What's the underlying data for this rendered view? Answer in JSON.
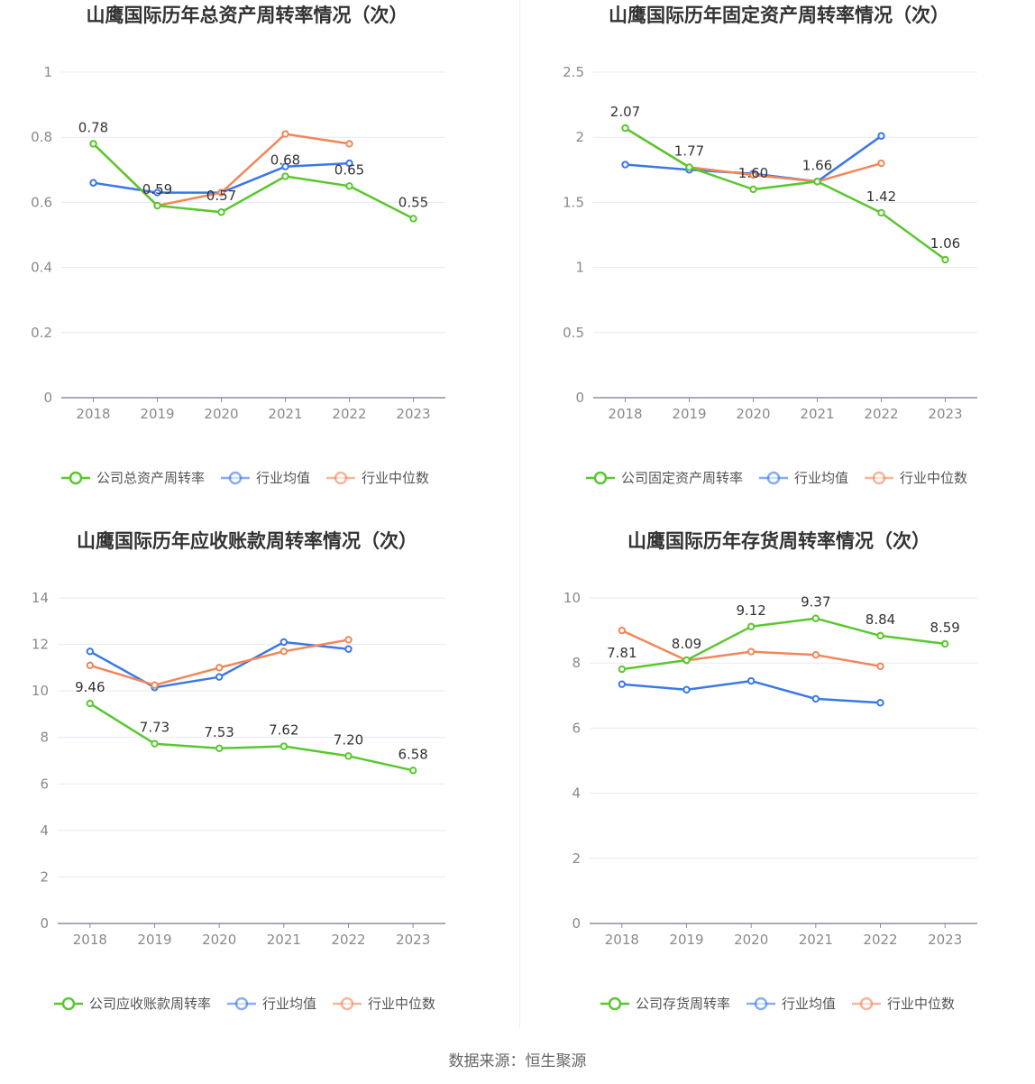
{
  "source_text": "数据来源：恒生聚源",
  "chart_data": [
    {
      "type": "line",
      "title": "山鹰国际历年总资产周转率情况（次）",
      "categories": [
        "2018",
        "2019",
        "2020",
        "2021",
        "2022",
        "2023"
      ],
      "ylim": [
        0,
        1
      ],
      "yticks": [
        "0",
        "0.2",
        "0.4",
        "0.6",
        "0.8",
        "1"
      ],
      "grid": true,
      "legend_position": "bottom",
      "series": [
        {
          "name": "公司总资产周转率",
          "color": "#5ac72f",
          "values": [
            0.78,
            0.59,
            0.57,
            0.68,
            0.65,
            0.55
          ],
          "labels": [
            "0.78",
            "0.59",
            "0.57",
            "0.68",
            "0.65",
            "0.55"
          ]
        },
        {
          "name": "行业均值",
          "color": "#3b78e7",
          "values": [
            0.66,
            0.63,
            0.63,
            0.71,
            0.72,
            null
          ],
          "labels": []
        },
        {
          "name": "行业中位数",
          "color": "#f0875a",
          "values": [
            0.78,
            0.59,
            0.63,
            0.81,
            0.78,
            null
          ],
          "labels": []
        }
      ]
    },
    {
      "type": "line",
      "title": "山鹰国际历年固定资产周转率情况（次）",
      "categories": [
        "2018",
        "2019",
        "2020",
        "2021",
        "2022",
        "2023"
      ],
      "ylim": [
        0,
        2.5
      ],
      "yticks": [
        "0",
        "0.5",
        "1",
        "1.5",
        "2",
        "2.5"
      ],
      "grid": true,
      "legend_position": "bottom",
      "series": [
        {
          "name": "公司固定资产周转率",
          "color": "#5ac72f",
          "values": [
            2.07,
            1.77,
            1.6,
            1.66,
            1.42,
            1.06
          ],
          "labels": [
            "2.07",
            "1.77",
            "1.60",
            "1.66",
            "1.42",
            "1.06"
          ]
        },
        {
          "name": "行业均值",
          "color": "#3b78e7",
          "values": [
            1.79,
            1.75,
            1.72,
            1.66,
            2.01,
            null
          ],
          "labels": []
        },
        {
          "name": "行业中位数",
          "color": "#f0875a",
          "values": [
            2.07,
            1.77,
            1.71,
            1.66,
            1.8,
            null
          ],
          "labels": []
        }
      ]
    },
    {
      "type": "line",
      "title": "山鹰国际历年应收账款周转率情况（次）",
      "categories": [
        "2018",
        "2019",
        "2020",
        "2021",
        "2022",
        "2023"
      ],
      "ylim": [
        0,
        14
      ],
      "yticks": [
        "0",
        "2",
        "4",
        "6",
        "8",
        "10",
        "12",
        "14"
      ],
      "grid": true,
      "legend_position": "bottom",
      "series": [
        {
          "name": "公司应收账款周转率",
          "color": "#5ac72f",
          "values": [
            9.46,
            7.73,
            7.53,
            7.62,
            7.2,
            6.58
          ],
          "labels": [
            "9.46",
            "7.73",
            "7.53",
            "7.62",
            "7.20",
            "6.58"
          ]
        },
        {
          "name": "行业均值",
          "color": "#3b78e7",
          "values": [
            11.7,
            10.15,
            10.6,
            12.1,
            11.8,
            null
          ],
          "labels": []
        },
        {
          "name": "行业中位数",
          "color": "#f0875a",
          "values": [
            11.1,
            10.25,
            11.0,
            11.7,
            12.2,
            null
          ],
          "labels": []
        }
      ]
    },
    {
      "type": "line",
      "title": "山鹰国际历年存货周转率情况（次）",
      "categories": [
        "2018",
        "2019",
        "2020",
        "2021",
        "2022",
        "2023"
      ],
      "ylim": [
        0,
        10
      ],
      "yticks": [
        "0",
        "2",
        "4",
        "6",
        "8",
        "10"
      ],
      "grid": true,
      "legend_position": "bottom",
      "series": [
        {
          "name": "公司存货周转率",
          "color": "#5ac72f",
          "values": [
            7.81,
            8.09,
            9.12,
            9.37,
            8.84,
            8.59
          ],
          "labels": [
            "7.81",
            "8.09",
            "9.12",
            "9.37",
            "8.84",
            "8.59"
          ]
        },
        {
          "name": "行业均值",
          "color": "#3b78e7",
          "values": [
            7.35,
            7.18,
            7.45,
            6.9,
            6.78,
            null
          ],
          "labels": []
        },
        {
          "name": "行业中位数",
          "color": "#f0875a",
          "values": [
            9.0,
            8.08,
            8.35,
            8.25,
            7.9,
            null
          ],
          "labels": []
        }
      ]
    }
  ]
}
